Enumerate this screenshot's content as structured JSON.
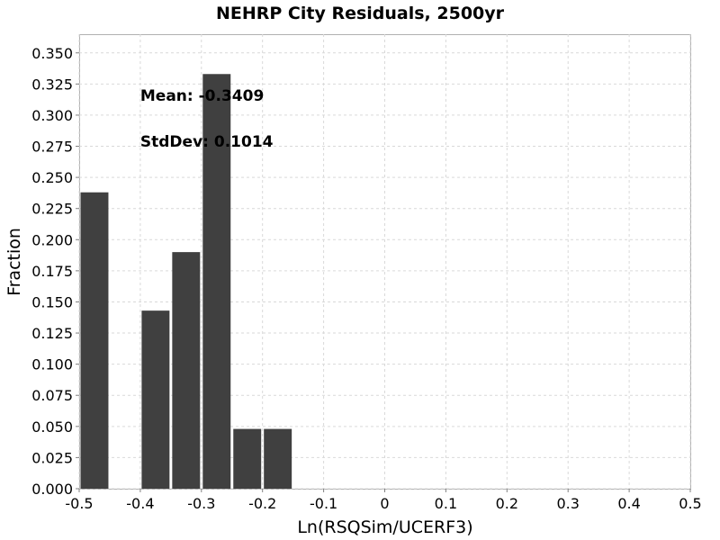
{
  "chart_data": {
    "type": "bar",
    "title": "NEHRP City Residuals, 2500yr",
    "xlabel": "Ln(RSQSim/UCERF3)",
    "ylabel": "Fraction",
    "xlim": [
      -0.5,
      0.5
    ],
    "ylim": [
      0,
      0.365
    ],
    "x_ticks": [
      -0.5,
      -0.4,
      -0.3,
      -0.2,
      -0.1,
      0,
      0.1,
      0.2,
      0.3,
      0.4,
      0.5
    ],
    "x_tick_labels": [
      "-0.5",
      "-0.4",
      "-0.3",
      "-0.2",
      "-0.1",
      "0",
      "0.1",
      "0.2",
      "0.3",
      "0.4",
      "0.5"
    ],
    "y_ticks": [
      0,
      0.025,
      0.05,
      0.075,
      0.1,
      0.125,
      0.15,
      0.175,
      0.2,
      0.225,
      0.25,
      0.275,
      0.3,
      0.325,
      0.35
    ],
    "y_tick_labels": [
      "0.000",
      "0.025",
      "0.050",
      "0.075",
      "0.100",
      "0.125",
      "0.150",
      "0.175",
      "0.200",
      "0.225",
      "0.250",
      "0.275",
      "0.300",
      "0.325",
      "0.350"
    ],
    "bin_width": 0.05,
    "bins": [
      {
        "x": -0.475,
        "value": 0.238
      },
      {
        "x": -0.375,
        "value": 0.143
      },
      {
        "x": -0.325,
        "value": 0.19
      },
      {
        "x": -0.275,
        "value": 0.333
      },
      {
        "x": -0.225,
        "value": 0.048
      },
      {
        "x": -0.175,
        "value": 0.048
      }
    ],
    "annotations": [
      {
        "label": "Mean",
        "value": "-0.3409",
        "text": "Mean: -0.3409"
      },
      {
        "label": "StdDev",
        "value": "0.1014",
        "text": "StdDev: 0.1014"
      }
    ],
    "grid": true,
    "legend": "none",
    "bar_color": "#404040",
    "grid_color": "#d9d9d9"
  }
}
